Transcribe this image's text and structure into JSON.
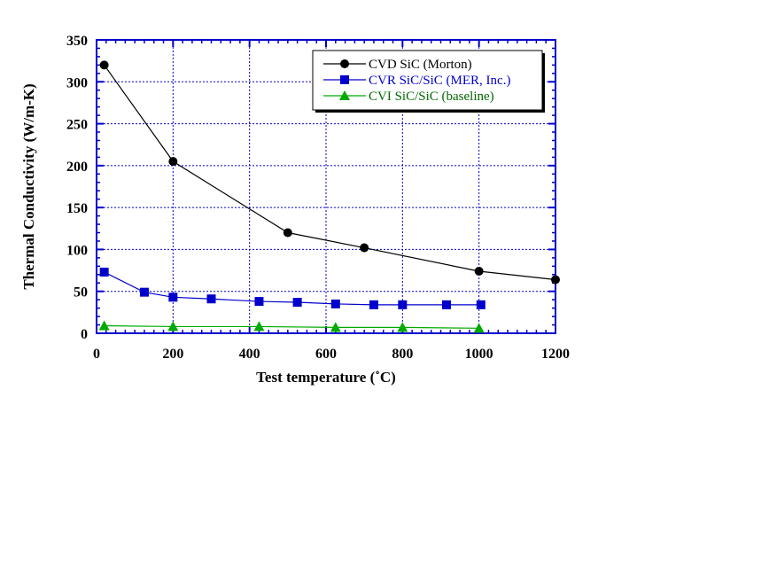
{
  "chart_data": {
    "type": "line",
    "xlabel": "Test temperature (˚C)",
    "ylabel": "Thermal Conductivity (W/m-K)",
    "xlim": [
      0,
      1200
    ],
    "ylim": [
      0,
      350
    ],
    "x_ticks": [
      0,
      200,
      400,
      600,
      800,
      1000,
      1200
    ],
    "y_ticks": [
      0,
      50,
      100,
      150,
      200,
      250,
      300,
      350
    ],
    "grid": true,
    "legend_position": "top-right",
    "axis_color": "#0000cc",
    "series": [
      {
        "name": "CVD SiC (Morton)",
        "color": "#000000",
        "text_color": "#000000",
        "marker": "circle",
        "x": [
          20,
          200,
          500,
          700,
          1000,
          1200
        ],
        "y": [
          320,
          205,
          120,
          102,
          74,
          64
        ]
      },
      {
        "name": "CVR SiC/SiC (MER, Inc.)",
        "color": "#0000cc",
        "text_color": "#0000cc",
        "marker": "square",
        "x": [
          20,
          125,
          200,
          300,
          425,
          525,
          625,
          725,
          800,
          915,
          1005
        ],
        "y": [
          73,
          49,
          43,
          41,
          38,
          37,
          35,
          34,
          34,
          34,
          34
        ]
      },
      {
        "name": "CVI SiC/SiC (baseline)",
        "color": "#00aa00",
        "text_color": "#006600",
        "marker": "triangle",
        "x": [
          20,
          200,
          425,
          625,
          800,
          1000
        ],
        "y": [
          9,
          8,
          8,
          7,
          7,
          6
        ]
      }
    ]
  }
}
